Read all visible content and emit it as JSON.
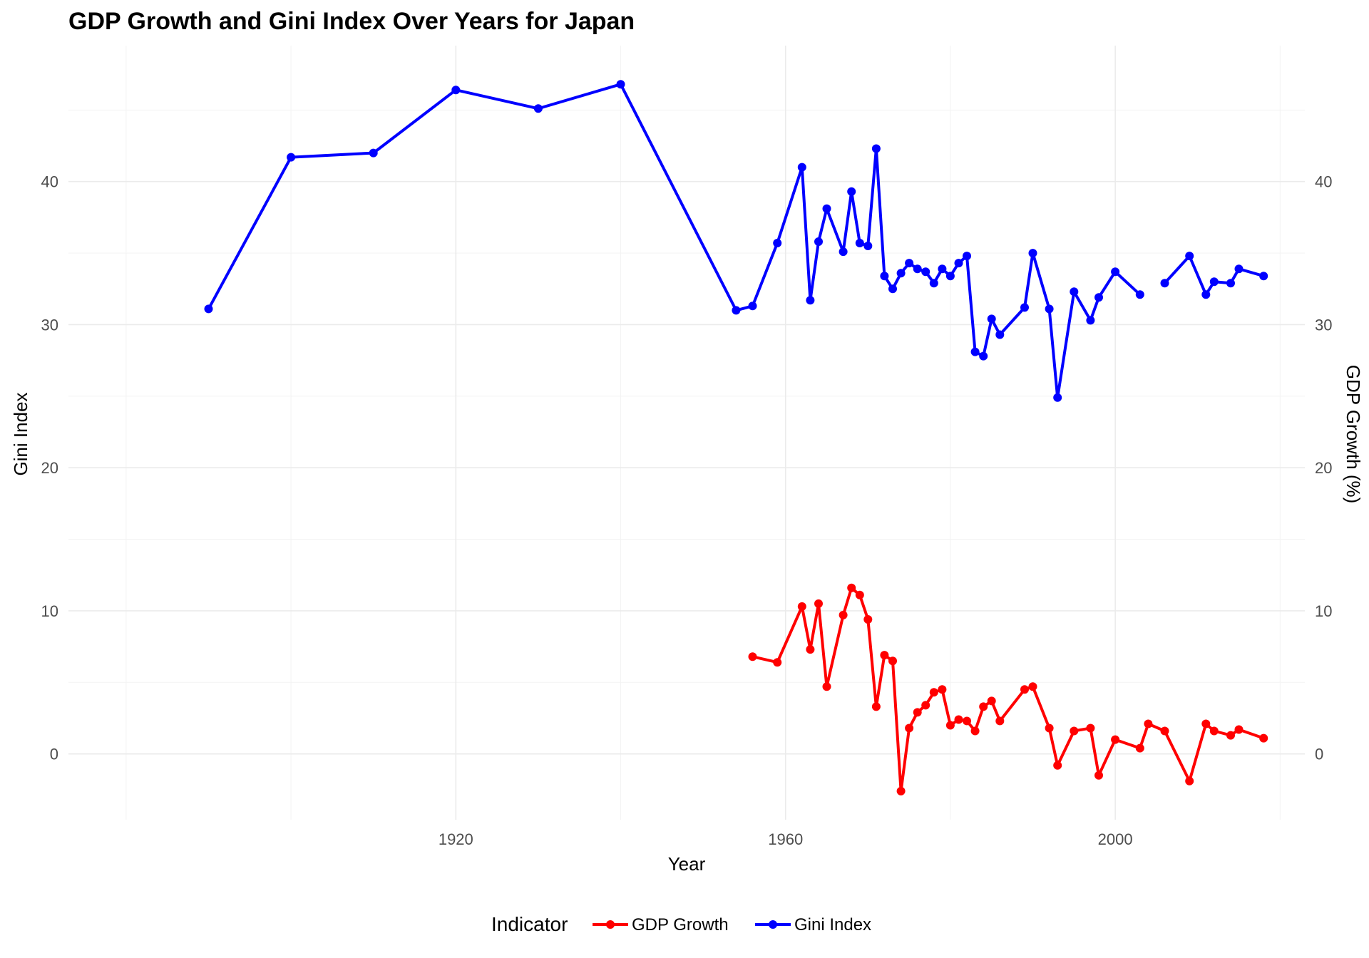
{
  "chart_data": {
    "type": "line",
    "title": "GDP Growth and Gini Index Over Years for Japan",
    "xlabel": "Year",
    "ylabel": "Gini Index",
    "y2label": "GDP Growth (%)",
    "xlim": [
      1873,
      2023
    ],
    "ylim": [
      -4.6,
      49.5
    ],
    "x_ticks": [
      1920,
      1960,
      2000
    ],
    "y_ticks": [
      0,
      10,
      20,
      30,
      40
    ],
    "grid": true,
    "legend": {
      "title": "Indicator",
      "position": "bottom"
    },
    "series": [
      {
        "name": "GDP Growth",
        "color": "#ff0000",
        "segments": [
          [
            [
              1956,
              6.8
            ],
            [
              1959,
              6.4
            ],
            [
              1962,
              10.3
            ],
            [
              1963,
              7.3
            ],
            [
              1964,
              10.5
            ],
            [
              1965,
              4.7
            ],
            [
              1967,
              9.7
            ],
            [
              1968,
              11.6
            ],
            [
              1969,
              11.1
            ],
            [
              1970,
              9.4
            ],
            [
              1971,
              3.3
            ],
            [
              1972,
              6.9
            ],
            [
              1973,
              6.5
            ],
            [
              1974,
              -2.6
            ],
            [
              1975,
              1.8
            ],
            [
              1976,
              2.9
            ],
            [
              1977,
              3.4
            ],
            [
              1978,
              4.3
            ],
            [
              1979,
              4.5
            ],
            [
              1980,
              2.0
            ],
            [
              1981,
              2.4
            ],
            [
              1982,
              2.3
            ],
            [
              1983,
              1.6
            ],
            [
              1984,
              3.3
            ],
            [
              1985,
              3.7
            ],
            [
              1986,
              2.3
            ],
            [
              1989,
              4.5
            ],
            [
              1990,
              4.7
            ],
            [
              1992,
              1.8
            ],
            [
              1993,
              -0.8
            ],
            [
              1995,
              1.6
            ],
            [
              1997,
              1.8
            ],
            [
              1998,
              -1.5
            ],
            [
              2000,
              1.0
            ],
            [
              2003,
              0.4
            ],
            [
              2004,
              2.1
            ],
            [
              2006,
              1.6
            ],
            [
              2009,
              -1.9
            ],
            [
              2011,
              2.1
            ],
            [
              2012,
              1.6
            ],
            [
              2014,
              1.3
            ],
            [
              2015,
              1.7
            ],
            [
              2018,
              1.1
            ]
          ]
        ]
      },
      {
        "name": "Gini Index",
        "color": "#0000ff",
        "segments": [
          [
            [
              1890,
              31.1
            ],
            [
              1900,
              41.7
            ],
            [
              1910,
              42.0
            ],
            [
              1920,
              46.4
            ],
            [
              1930,
              45.1
            ],
            [
              1940,
              46.8
            ],
            [
              1954,
              31.0
            ],
            [
              1956,
              31.3
            ],
            [
              1959,
              35.7
            ],
            [
              1962,
              41.0
            ],
            [
              1963,
              31.7
            ],
            [
              1964,
              35.8
            ],
            [
              1965,
              38.1
            ],
            [
              1967,
              35.1
            ],
            [
              1968,
              39.3
            ],
            [
              1969,
              35.7
            ],
            [
              1970,
              35.5
            ],
            [
              1971,
              42.3
            ],
            [
              1972,
              33.4
            ],
            [
              1973,
              32.5
            ],
            [
              1974,
              33.6
            ],
            [
              1975,
              34.3
            ],
            [
              1976,
              33.9
            ],
            [
              1977,
              33.7
            ],
            [
              1978,
              32.9
            ],
            [
              1979,
              33.9
            ],
            [
              1980,
              33.4
            ],
            [
              1981,
              34.3
            ],
            [
              1982,
              34.8
            ],
            [
              1983,
              28.1
            ],
            [
              1984,
              27.8
            ],
            [
              1985,
              30.4
            ],
            [
              1986,
              29.3
            ],
            [
              1989,
              31.2
            ],
            [
              1990,
              35.0
            ],
            [
              1992,
              31.1
            ],
            [
              1993,
              24.9
            ],
            [
              1995,
              32.3
            ],
            [
              1997,
              30.3
            ],
            [
              1998,
              31.9
            ],
            [
              2000,
              33.7
            ],
            [
              2003,
              32.1
            ]
          ],
          [
            [
              2006,
              32.9
            ],
            [
              2009,
              34.8
            ],
            [
              2011,
              32.1
            ],
            [
              2012,
              33.0
            ],
            [
              2014,
              32.9
            ],
            [
              2015,
              33.9
            ],
            [
              2018,
              33.4
            ]
          ]
        ]
      }
    ]
  }
}
